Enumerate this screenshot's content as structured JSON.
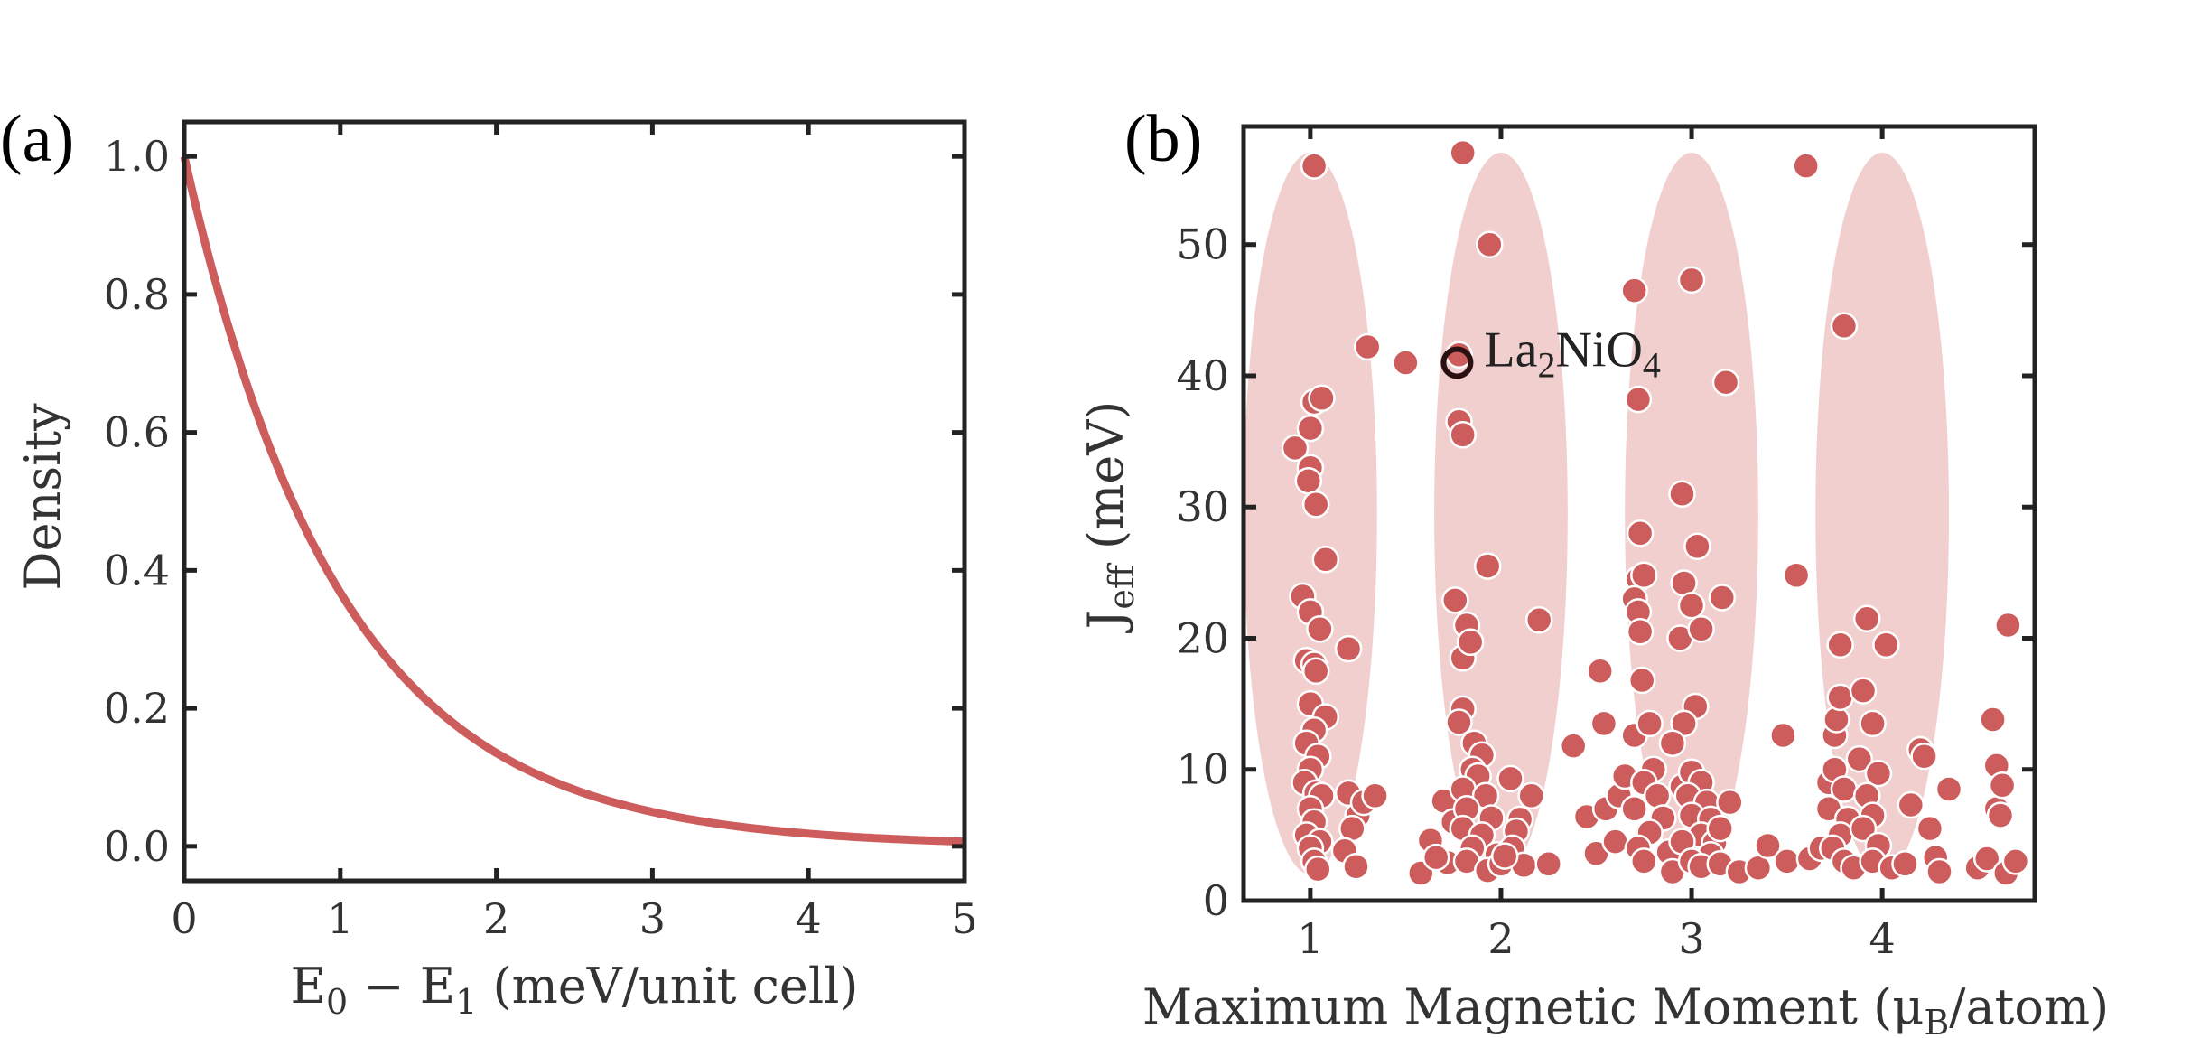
{
  "chart_data": [
    {
      "type": "line",
      "panel_label": "(a)",
      "title": "",
      "xlabel": {
        "base": "E",
        "sub0": "0",
        "minus": " − ",
        "base1": "E",
        "sub1": "1",
        "rest": " (meV/unit cell)"
      },
      "ylabel": "Density",
      "xlim": [
        0,
        5
      ],
      "ylim": [
        -0.05,
        1.05
      ],
      "xticks": [
        "0",
        "1",
        "2",
        "3",
        "4",
        "5"
      ],
      "xtick_values": [
        0,
        1,
        2,
        3,
        4,
        5
      ],
      "yticks": [
        "0.0",
        "0.2",
        "0.4",
        "0.6",
        "0.8",
        "1.0"
      ],
      "ytick_values": [
        0.0,
        0.2,
        0.4,
        0.6,
        0.8,
        1.0
      ],
      "series": [
        {
          "name": "density",
          "color": "#cd5c5c",
          "function": "exp(-x)",
          "x": [
            0,
            0.25,
            0.5,
            0.75,
            1,
            1.5,
            2,
            2.5,
            3,
            3.5,
            4,
            4.5,
            5
          ],
          "y": [
            1.0,
            0.779,
            0.607,
            0.472,
            0.368,
            0.223,
            0.135,
            0.082,
            0.05,
            0.03,
            0.018,
            0.011,
            0.007
          ]
        }
      ]
    },
    {
      "type": "scatter",
      "panel_label": "(b)",
      "title": "",
      "xlabel": {
        "pre": "Maximum Magnetic Moment (μ",
        "sub": "B",
        "post": "/atom)"
      },
      "ylabel": {
        "base": "J",
        "sub": "eff",
        "rest": " (meV)"
      },
      "xlim": [
        0.65,
        4.8
      ],
      "ylim": [
        0,
        59
      ],
      "xticks": [
        "1",
        "2",
        "3",
        "4"
      ],
      "xtick_values": [
        1,
        2,
        3,
        4
      ],
      "yticks": [
        "0",
        "10",
        "20",
        "30",
        "40",
        "50"
      ],
      "ytick_values": [
        0,
        10,
        20,
        30,
        40,
        50
      ],
      "point_color": "#cd5c5c",
      "ellipse_color": "#f2cfcf",
      "ellipses": [
        {
          "center_x": 1.0,
          "center_y": 29.5,
          "half_width_x": 0.35,
          "half_height_y": 27.5
        },
        {
          "center_x": 2.0,
          "center_y": 29.5,
          "half_width_x": 0.35,
          "half_height_y": 27.5
        },
        {
          "center_x": 3.0,
          "center_y": 29.5,
          "half_width_x": 0.35,
          "half_height_y": 27.5
        },
        {
          "center_x": 4.0,
          "center_y": 29.5,
          "half_width_x": 0.35,
          "half_height_y": 27.5
        }
      ],
      "annotation": {
        "x": 1.77,
        "y": 41,
        "base": "La",
        "sub1": "2",
        "mid": "NiO",
        "sub2": "4"
      },
      "points": [
        [
          1.02,
          56
        ],
        [
          0.92,
          34.5
        ],
        [
          1.02,
          38
        ],
        [
          1.06,
          38.3
        ],
        [
          1.0,
          36
        ],
        [
          1.0,
          33
        ],
        [
          0.99,
          32
        ],
        [
          1.03,
          30.2
        ],
        [
          1.08,
          26
        ],
        [
          0.96,
          23.2
        ],
        [
          1.0,
          22
        ],
        [
          1.05,
          20.7
        ],
        [
          0.98,
          18.3
        ],
        [
          1.02,
          18
        ],
        [
          1.03,
          17.5
        ],
        [
          1.2,
          19.2
        ],
        [
          1.0,
          15
        ],
        [
          1.08,
          14
        ],
        [
          1.02,
          13
        ],
        [
          0.98,
          12
        ],
        [
          1.04,
          11
        ],
        [
          1.0,
          10
        ],
        [
          0.97,
          9
        ],
        [
          1.03,
          8.2
        ],
        [
          1.06,
          8
        ],
        [
          1.0,
          7
        ],
        [
          1.02,
          6
        ],
        [
          0.98,
          5
        ],
        [
          1.05,
          4.5
        ],
        [
          1.0,
          4
        ],
        [
          1.02,
          3
        ],
        [
          1.04,
          2.4
        ],
        [
          1.2,
          8.2
        ],
        [
          1.25,
          6.5
        ],
        [
          1.22,
          5.5
        ],
        [
          1.18,
          3.8
        ],
        [
          1.24,
          2.6
        ],
        [
          1.28,
          7.5
        ],
        [
          1.34,
          8
        ],
        [
          1.3,
          42.2
        ],
        [
          1.5,
          41
        ],
        [
          1.58,
          2.1
        ],
        [
          1.63,
          4.6
        ],
        [
          1.7,
          7.6
        ],
        [
          1.75,
          6
        ],
        [
          1.72,
          2.9
        ],
        [
          1.66,
          3.3
        ],
        [
          1.8,
          57
        ],
        [
          1.78,
          41.6
        ],
        [
          1.78,
          36.5
        ],
        [
          1.8,
          35.5
        ],
        [
          1.76,
          22.9
        ],
        [
          1.82,
          21
        ],
        [
          1.8,
          18.5
        ],
        [
          1.84,
          19.7
        ],
        [
          1.8,
          14.6
        ],
        [
          1.78,
          13.6
        ],
        [
          1.86,
          12
        ],
        [
          1.9,
          11.1
        ],
        [
          1.85,
          10
        ],
        [
          1.88,
          9.5
        ],
        [
          1.8,
          8.5
        ],
        [
          1.92,
          8
        ],
        [
          1.82,
          7
        ],
        [
          1.95,
          6.3
        ],
        [
          1.8,
          5.5
        ],
        [
          1.9,
          5
        ],
        [
          1.85,
          4
        ],
        [
          1.98,
          3.5
        ],
        [
          1.82,
          3
        ],
        [
          1.93,
          2.3
        ],
        [
          2.0,
          2.8
        ],
        [
          1.94,
          50
        ],
        [
          1.93,
          25.5
        ],
        [
          2.05,
          9.3
        ],
        [
          2.1,
          6.2
        ],
        [
          2.08,
          5.3
        ],
        [
          2.06,
          4
        ],
        [
          2.12,
          2.7
        ],
        [
          2.02,
          3.4
        ],
        [
          2.16,
          8
        ],
        [
          2.2,
          21.4
        ],
        [
          2.25,
          2.8
        ],
        [
          2.38,
          11.8
        ],
        [
          2.45,
          6.4
        ],
        [
          2.5,
          3.6
        ],
        [
          2.52,
          17.5
        ],
        [
          2.54,
          13.5
        ],
        [
          2.55,
          7
        ],
        [
          2.6,
          4.5
        ],
        [
          2.62,
          8
        ],
        [
          2.65,
          9.5
        ],
        [
          2.7,
          46.5
        ],
        [
          2.72,
          38.2
        ],
        [
          2.73,
          28
        ],
        [
          2.72,
          24.5
        ],
        [
          2.75,
          24.8
        ],
        [
          2.7,
          23
        ],
        [
          2.72,
          22
        ],
        [
          2.73,
          20.5
        ],
        [
          2.74,
          16.8
        ],
        [
          2.7,
          12.6
        ],
        [
          2.78,
          13.5
        ],
        [
          2.8,
          10
        ],
        [
          2.75,
          9
        ],
        [
          2.82,
          8
        ],
        [
          2.7,
          7
        ],
        [
          2.85,
          6.3
        ],
        [
          2.78,
          5.2
        ],
        [
          2.72,
          4
        ],
        [
          2.88,
          3.7
        ],
        [
          2.75,
          3
        ],
        [
          2.9,
          2.2
        ],
        [
          2.95,
          8.7
        ],
        [
          3.0,
          47.3
        ],
        [
          2.95,
          31
        ],
        [
          3.03,
          27
        ],
        [
          2.96,
          24.2
        ],
        [
          3.0,
          22.5
        ],
        [
          2.94,
          20
        ],
        [
          3.05,
          20.7
        ],
        [
          3.02,
          14.8
        ],
        [
          2.96,
          13.5
        ],
        [
          2.9,
          12
        ],
        [
          3.0,
          9.8
        ],
        [
          3.05,
          9
        ],
        [
          2.98,
          8
        ],
        [
          3.08,
          7.5
        ],
        [
          3.0,
          6.5
        ],
        [
          3.1,
          6.2
        ],
        [
          3.05,
          5
        ],
        [
          2.95,
          4.5
        ],
        [
          3.12,
          4.4
        ],
        [
          3.1,
          3.5
        ],
        [
          3.0,
          3
        ],
        [
          3.05,
          2.6
        ],
        [
          3.15,
          2.8
        ],
        [
          3.18,
          39.5
        ],
        [
          3.16,
          23.1
        ],
        [
          3.2,
          7.5
        ],
        [
          3.15,
          5.5
        ],
        [
          3.25,
          2.2
        ],
        [
          3.35,
          2.5
        ],
        [
          3.4,
          4.2
        ],
        [
          3.5,
          3
        ],
        [
          3.48,
          12.6
        ],
        [
          3.55,
          24.8
        ],
        [
          3.6,
          56
        ],
        [
          3.62,
          3.2
        ],
        [
          3.68,
          4
        ],
        [
          3.72,
          9
        ],
        [
          3.75,
          12.6
        ],
        [
          3.76,
          13.8
        ],
        [
          3.78,
          15.5
        ],
        [
          3.8,
          43.8
        ],
        [
          3.78,
          19.5
        ],
        [
          3.75,
          10
        ],
        [
          3.8,
          8.5
        ],
        [
          3.72,
          7
        ],
        [
          3.82,
          6.2
        ],
        [
          3.78,
          5
        ],
        [
          3.74,
          4
        ],
        [
          3.8,
          3
        ],
        [
          3.85,
          2.5
        ],
        [
          3.88,
          10.8
        ],
        [
          3.9,
          16
        ],
        [
          3.92,
          21.5
        ],
        [
          3.95,
          13.5
        ],
        [
          3.98,
          9.7
        ],
        [
          3.92,
          8
        ],
        [
          3.95,
          6.5
        ],
        [
          3.9,
          5.5
        ],
        [
          3.98,
          4.2
        ],
        [
          3.95,
          3
        ],
        [
          4.02,
          19.5
        ],
        [
          4.05,
          2.5
        ],
        [
          4.12,
          2.8
        ],
        [
          4.15,
          7.3
        ],
        [
          4.2,
          11.5
        ],
        [
          4.22,
          11
        ],
        [
          4.25,
          5.5
        ],
        [
          4.28,
          3.3
        ],
        [
          4.3,
          2.2
        ],
        [
          4.35,
          8.5
        ],
        [
          4.5,
          2.5
        ],
        [
          4.55,
          3.2
        ],
        [
          4.58,
          13.8
        ],
        [
          4.6,
          7
        ],
        [
          4.6,
          10.3
        ],
        [
          4.62,
          6.5
        ],
        [
          4.63,
          8.8
        ],
        [
          4.65,
          2.1
        ],
        [
          4.7,
          3
        ],
        [
          4.66,
          21
        ]
      ]
    }
  ]
}
